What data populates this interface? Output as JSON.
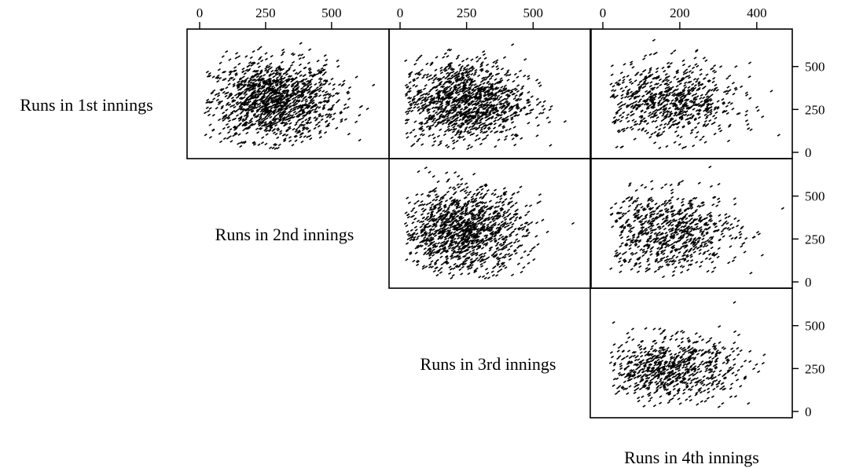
{
  "chart_data": {
    "type": "scatter",
    "layout": "scatterplot-matrix-upper-triangle",
    "title": "",
    "variables": [
      "Runs in 1st innings",
      "Runs in 2nd innings",
      "Runs in 3rd innings",
      "Runs in 4th innings"
    ],
    "top_axes": [
      {
        "column": "Runs in 2nd innings",
        "range": [
          0,
          700
        ],
        "ticks": [
          0,
          250,
          500
        ]
      },
      {
        "column": "Runs in 3rd innings",
        "range": [
          0,
          700
        ],
        "ticks": [
          0,
          250,
          500
        ]
      },
      {
        "column": "Runs in 4th innings",
        "range": [
          0,
          480
        ],
        "ticks": [
          0,
          200,
          400
        ]
      }
    ],
    "right_axes": [
      {
        "row": "Runs in 1st innings",
        "range": [
          0,
          700
        ],
        "ticks": [
          0,
          250,
          500
        ]
      },
      {
        "row": "Runs in 2nd innings",
        "range": [
          0,
          700
        ],
        "ticks": [
          0,
          250,
          500
        ]
      },
      {
        "row": "Runs in 3rd innings",
        "range": [
          0,
          700
        ],
        "ticks": [
          0,
          250,
          500
        ]
      }
    ],
    "panels": [
      {
        "x": "Runs in 2nd innings",
        "y": "Runs in 1st innings",
        "n": 1400,
        "x_center": 280,
        "x_sd": 120,
        "y_center": 300,
        "y_sd": 115,
        "x_range": [
          0,
          700
        ],
        "y_range": [
          0,
          700
        ]
      },
      {
        "x": "Runs in 3rd innings",
        "y": "Runs in 1st innings",
        "n": 1300,
        "x_center": 240,
        "x_sd": 115,
        "y_center": 300,
        "y_sd": 120,
        "x_range": [
          0,
          700
        ],
        "y_range": [
          0,
          700
        ]
      },
      {
        "x": "Runs in 4th innings",
        "y": "Runs in 1st innings",
        "n": 800,
        "x_center": 170,
        "x_sd": 90,
        "y_center": 290,
        "y_sd": 110,
        "x_range": [
          0,
          480
        ],
        "y_range": [
          0,
          700
        ]
      },
      {
        "x": "Runs in 3rd innings",
        "y": "Runs in 2nd innings",
        "n": 1300,
        "x_center": 240,
        "x_sd": 115,
        "y_center": 300,
        "y_sd": 120,
        "x_range": [
          0,
          700
        ],
        "y_range": [
          0,
          700
        ]
      },
      {
        "x": "Runs in 4th innings",
        "y": "Runs in 2nd innings",
        "n": 800,
        "x_center": 170,
        "x_sd": 90,
        "y_center": 290,
        "y_sd": 115,
        "x_range": [
          0,
          480
        ],
        "y_range": [
          0,
          700
        ]
      },
      {
        "x": "Runs in 4th innings",
        "y": "Runs in 3rd innings",
        "n": 800,
        "x_center": 170,
        "x_sd": 90,
        "y_center": 250,
        "y_sd": 90,
        "x_range": [
          0,
          480
        ],
        "y_range": [
          0,
          700
        ]
      }
    ],
    "marker_color": "#000000"
  }
}
